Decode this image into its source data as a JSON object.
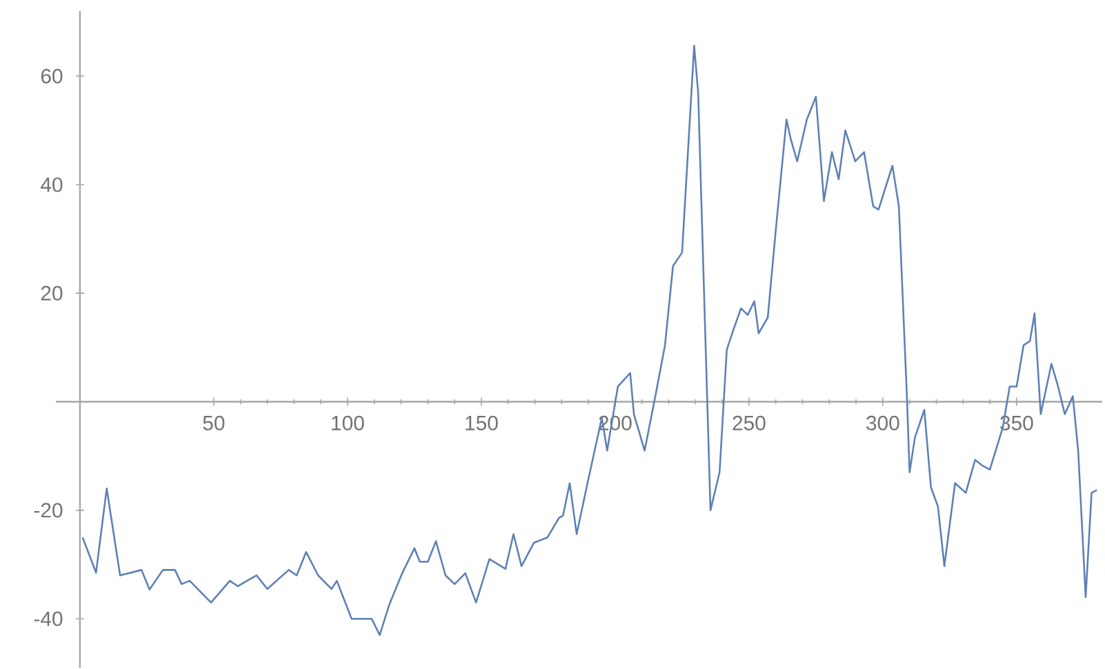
{
  "chart_data": {
    "type": "line",
    "x": [
      1,
      6,
      10,
      15,
      23,
      26,
      31,
      35.5,
      38,
      41,
      49,
      56,
      59,
      66,
      70,
      78,
      81,
      84.5,
      89,
      94,
      96,
      101.5,
      109,
      112,
      115.5,
      120.5,
      125,
      127,
      130,
      133,
      136.6,
      140,
      144,
      148,
      153,
      159,
      162,
      165,
      169.6,
      174.7,
      179,
      180.5,
      183,
      185.6,
      190,
      195,
      197,
      201,
      205.6,
      207,
      211,
      215,
      218.6,
      221.6,
      225,
      229.5,
      231,
      235.6,
      239,
      241.7,
      244,
      247,
      249.5,
      252,
      253.6,
      257,
      260,
      264,
      265.5,
      268,
      271.6,
      275,
      278,
      281,
      283.5,
      286,
      289.7,
      293,
      296.4,
      298.4,
      303.6,
      306,
      309,
      310,
      312,
      315.5,
      318,
      320.6,
      323,
      327,
      331,
      334.5,
      337,
      340,
      344.8,
      347.4,
      350,
      352.6,
      355,
      356.7,
      359,
      363,
      365.5,
      368,
      371,
      373,
      375.8,
      378,
      380
    ],
    "series": [
      {
        "color": "#5e81b5",
        "values": [
          -25,
          -31.5,
          -16,
          -32,
          -31,
          -34.6,
          -31,
          -31,
          -33.6,
          -33,
          -37,
          -33,
          -34,
          -32,
          -34.5,
          -31,
          -32,
          -27.7,
          -32,
          -34.5,
          -33,
          -40,
          -40,
          -43,
          -37.5,
          -31.5,
          -27,
          -29.5,
          -29.5,
          -25.7,
          -32,
          -33.6,
          -31.6,
          -37,
          -29,
          -30.8,
          -24.4,
          -30.3,
          -26,
          -25,
          -21.4,
          -21,
          -15,
          -24.4,
          -14.2,
          -3,
          -9,
          2.8,
          5.3,
          -2.3,
          -9,
          1,
          10.4,
          25,
          27.5,
          65.6,
          57,
          -20,
          -13,
          9.6,
          13,
          17.2,
          16,
          18.5,
          12.6,
          15.5,
          31.6,
          52,
          48.6,
          44.3,
          52,
          56.2,
          37,
          46,
          41,
          50,
          44.3,
          46,
          36,
          35.4,
          43.5,
          36,
          1,
          -13,
          -6.6,
          -1.5,
          -15.8,
          -19.3,
          -30.3,
          -15,
          -16.8,
          -10.7,
          -11.7,
          -12.5,
          -4.8,
          2.8,
          2.8,
          10.4,
          11.2,
          16.3,
          -2.3,
          7,
          2.8,
          -2.3,
          1,
          -9,
          -36,
          -16.8,
          -16.3
        ]
      }
    ],
    "xlim": [
      -9,
      382
    ],
    "ylim": [
      -49,
      72
    ],
    "xticks": [
      50,
      100,
      150,
      200,
      250,
      300,
      350
    ],
    "yticks": [
      -40,
      -20,
      20,
      40,
      60
    ],
    "marker": "none",
    "line_style": "solid"
  }
}
